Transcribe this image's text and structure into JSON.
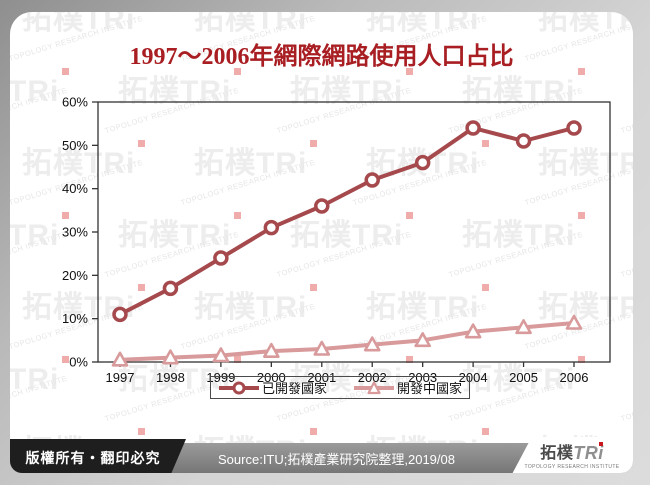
{
  "title": "1997～2006年網際網路使用人口占比",
  "chart_data": {
    "type": "line",
    "categories": [
      "1997",
      "1998",
      "1999",
      "2000",
      "2001",
      "2002",
      "2003",
      "2004",
      "2005",
      "2006"
    ],
    "series": [
      {
        "name": "已開發國家",
        "values": [
          11,
          17,
          24,
          31,
          36,
          42,
          46,
          54,
          51,
          54
        ],
        "color": "#a5494d",
        "marker": "circle"
      },
      {
        "name": "開發中國家",
        "values": [
          0.5,
          1,
          1.5,
          2.5,
          3,
          4,
          5,
          7,
          8,
          9
        ],
        "color": "#d89a9b",
        "marker": "triangle"
      }
    ],
    "ylim": [
      0,
      60
    ],
    "yticks": [
      "0%",
      "10%",
      "20%",
      "30%",
      "40%",
      "50%",
      "60%"
    ],
    "ytick_step": 10,
    "xlabel": "",
    "ylabel": "",
    "grid": false,
    "legend_position": "bottom"
  },
  "watermark": {
    "big": "拓樸TRi",
    "en": "TOPOLOGY RESEARCH INSTITUTE"
  },
  "footer": {
    "copyright": "版權所有‧翻印必究",
    "source": "Source:ITU;拓樸產業研究院整理,2019/08"
  },
  "logo": {
    "cn": "拓樸",
    "tri": "TRi",
    "subtitle": "TOPOLOGY RESEARCH INSTITUTE"
  },
  "colors": {
    "title": "#a81e22",
    "axis": "#333333",
    "tick_label": "#111111",
    "developed_line": "#a5494d",
    "developing_line": "#d89a9b",
    "footer_black": "#1e1e1e",
    "footer_gray": "#8a8a8a",
    "logo_dot_red": "#c8171e",
    "watermark_gray": "#ededed",
    "watermark_red": "#f0abab"
  }
}
